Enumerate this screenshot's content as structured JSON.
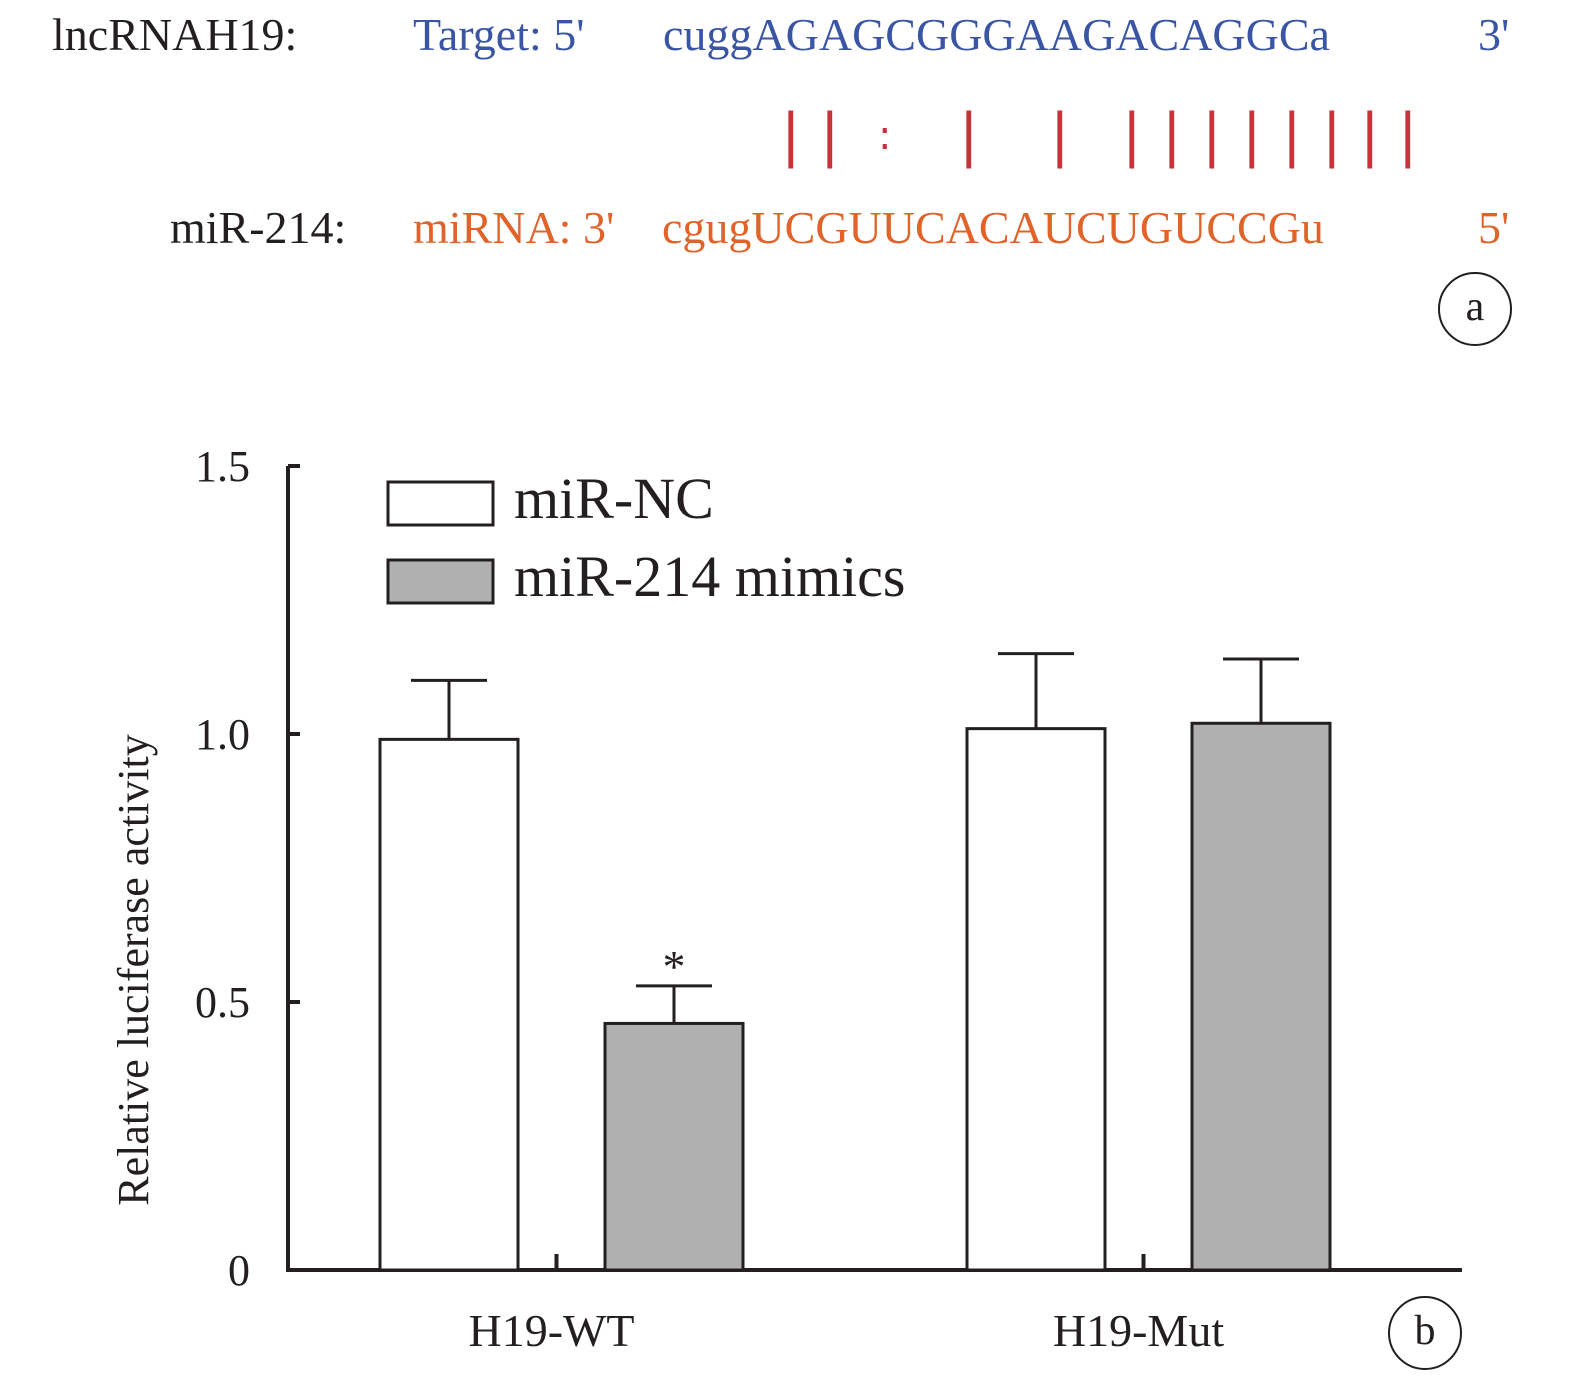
{
  "panel_a": {
    "target_label": "lncRNAH19:",
    "target_prefix": "Target: 5'",
    "target_seq": "cuggAGAGCGGGAAGACAGGCa",
    "target_suffix": "3'",
    "mirna_label": "miR-214:",
    "mirna_prefix": "miRNA: 3'",
    "mirna_seq": "cgugUCGUUCACAUCUGUCCGu",
    "mirna_suffix": "5'",
    "pairing_marks": [
      "|",
      "|",
      ":",
      "|",
      "|",
      "|",
      "|",
      "|",
      "|",
      "|",
      "|",
      "|",
      "|"
    ],
    "pairing_color": "#c8323a",
    "target_color": "#3a55a4",
    "mirna_color": "#e0642a",
    "letter": "a"
  },
  "panel_b": {
    "letter": "b"
  },
  "chart_data": {
    "type": "bar",
    "categories": [
      "H19-WT",
      "H19-Mut"
    ],
    "series": [
      {
        "name": "miR-NC",
        "values": [
          0.99,
          1.01
        ],
        "errors": [
          0.11,
          0.14
        ],
        "color": "#ffffff"
      },
      {
        "name": "miR-214 mimics",
        "values": [
          0.46,
          1.02
        ],
        "errors": [
          0.07,
          0.12
        ],
        "color": "#b0b0b0"
      }
    ],
    "significance": [
      {
        "category": "H19-WT",
        "series": "miR-214 mimics",
        "mark": "*"
      }
    ],
    "xlabel": "",
    "ylabel": "Relative luciferase activity",
    "ylim": [
      0,
      1.5
    ],
    "yticks": [
      0,
      0.5,
      1.0,
      1.5
    ],
    "ytick_labels": [
      "0",
      "0.5",
      "1.0",
      "1.5"
    ],
    "grid": false,
    "legend_position": "top-left"
  }
}
